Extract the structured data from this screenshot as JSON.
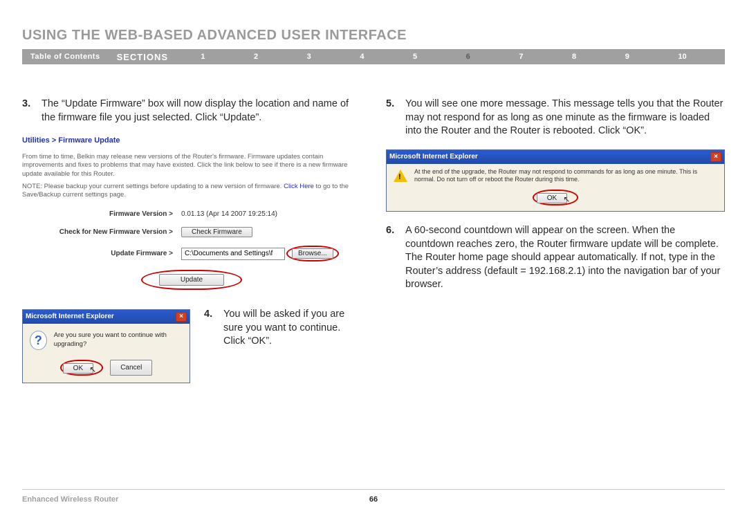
{
  "page_title": "USING THE WEB-BASED ADVANCED USER INTERFACE",
  "nav": {
    "toc": "Table of Contents",
    "sections": "SECTIONS",
    "items": [
      "1",
      "2",
      "3",
      "4",
      "5",
      "6",
      "7",
      "8",
      "9",
      "10"
    ],
    "active_index": 5
  },
  "left": {
    "step3_num": "3.",
    "step3_text": "The “Update Firmware” box will now display the location and name of the firmware file you just selected. Click “Update”.",
    "fw": {
      "crumb": "Utilities > Firmware Update",
      "desc": "From time to time, Belkin may release new versions of the Router's firmware. Firmware updates contain improvements and fixes to problems that may have existed. Click the link below to see if there is a new firmware update available for this Router.",
      "note_prefix": "NOTE: Please backup your current settings before updating to a new version of firmware.",
      "note_link": "Click Here",
      "note_suffix": " to go to the Save/Backup current settings page.",
      "row_version_label": "Firmware Version >",
      "row_version_value": "0.01.13 (Apr 14 2007 19:25:14)",
      "row_check_label": "Check for New Firmware Version >",
      "row_check_btn": "Check Firmware",
      "row_update_label": "Update Firmware >",
      "row_update_value": "C:\\Documents and Settings\\f",
      "row_browse_btn": "Browse...",
      "update_btn": "Update"
    },
    "dialog4": {
      "title": "Microsoft Internet Explorer",
      "msg": "Are you sure you want to continue with upgrading?",
      "ok": "OK",
      "cancel": "Cancel"
    },
    "step4_num": "4.",
    "step4_text": "You will be asked if you are sure you want to continue. Click “OK”."
  },
  "right": {
    "step5_num": "5.",
    "step5_text": "You will see one more message. This message tells you that the Router may not respond for as long as one minute as the firmware is loaded into the Router and the Router is rebooted. Click “OK”.",
    "dialog5": {
      "title": "Microsoft Internet Explorer",
      "msg": "At the end of the upgrade, the Router may not respond to commands for as long as one minute. This is normal. Do not turn off or reboot the Router during this time.",
      "ok": "OK"
    },
    "step6_num": "6.",
    "step6_text": "A 60-second countdown will appear on the screen. When the countdown reaches zero, the Router firmware update will be complete. The Router home page should appear automatically. If not, type in the Router’s address (default = 192.168.2.1) into the navigation bar of your browser."
  },
  "footer": {
    "product": "Enhanced Wireless Router",
    "page": "66"
  },
  "colors": {
    "title_gray": "#9a9a9a",
    "nav_bg": "#a0a0a0",
    "nav_active": "#5a5a5a",
    "link_blue": "#2030c0",
    "ie_title_bg": "#2a5bd0",
    "ie_body_bg": "#f4f0e4",
    "red_circle": "#cc0000"
  }
}
